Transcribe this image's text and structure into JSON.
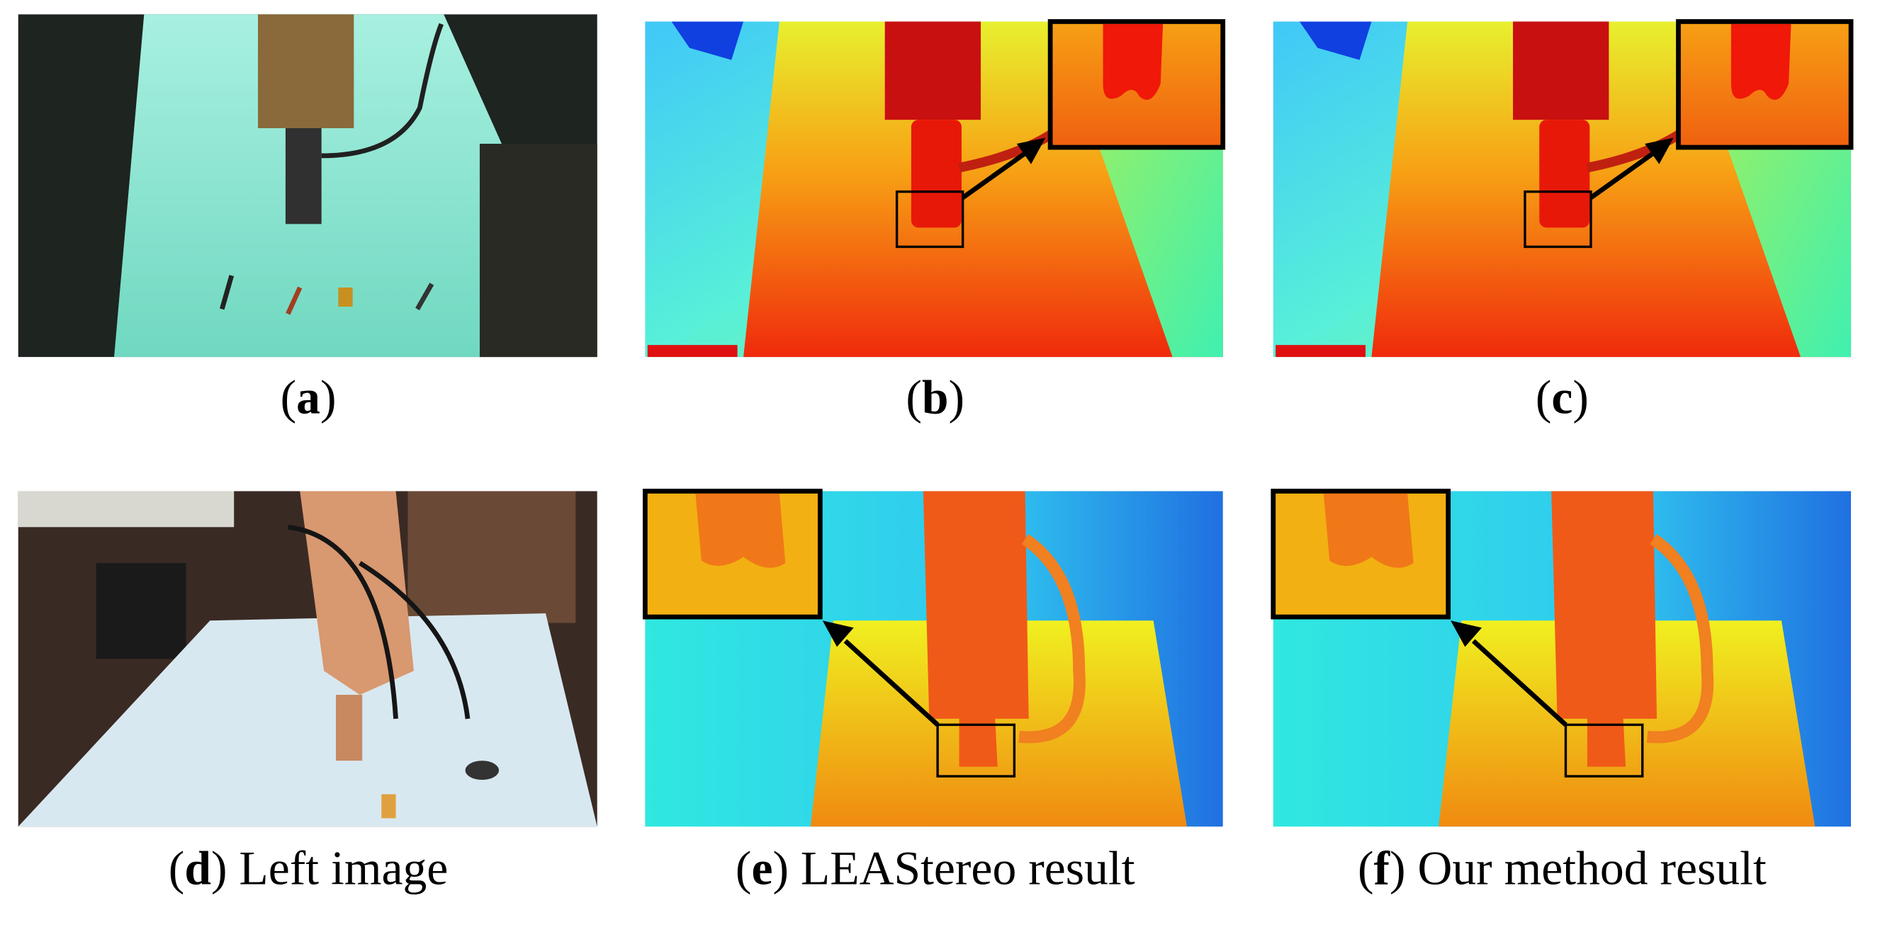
{
  "panels": [
    {
      "caption_parts": [
        "(",
        "a",
        ")"
      ]
    },
    {
      "caption_parts": [
        "(",
        "b",
        ")"
      ]
    },
    {
      "caption_parts": [
        "(",
        "c",
        ")"
      ]
    },
    {
      "caption_parts": [
        "(",
        "d",
        ") Left image"
      ]
    },
    {
      "caption_parts": [
        "(",
        "e",
        ") LEAStereo result"
      ]
    },
    {
      "caption_parts": [
        "(",
        "f",
        ") Our method result"
      ]
    }
  ]
}
